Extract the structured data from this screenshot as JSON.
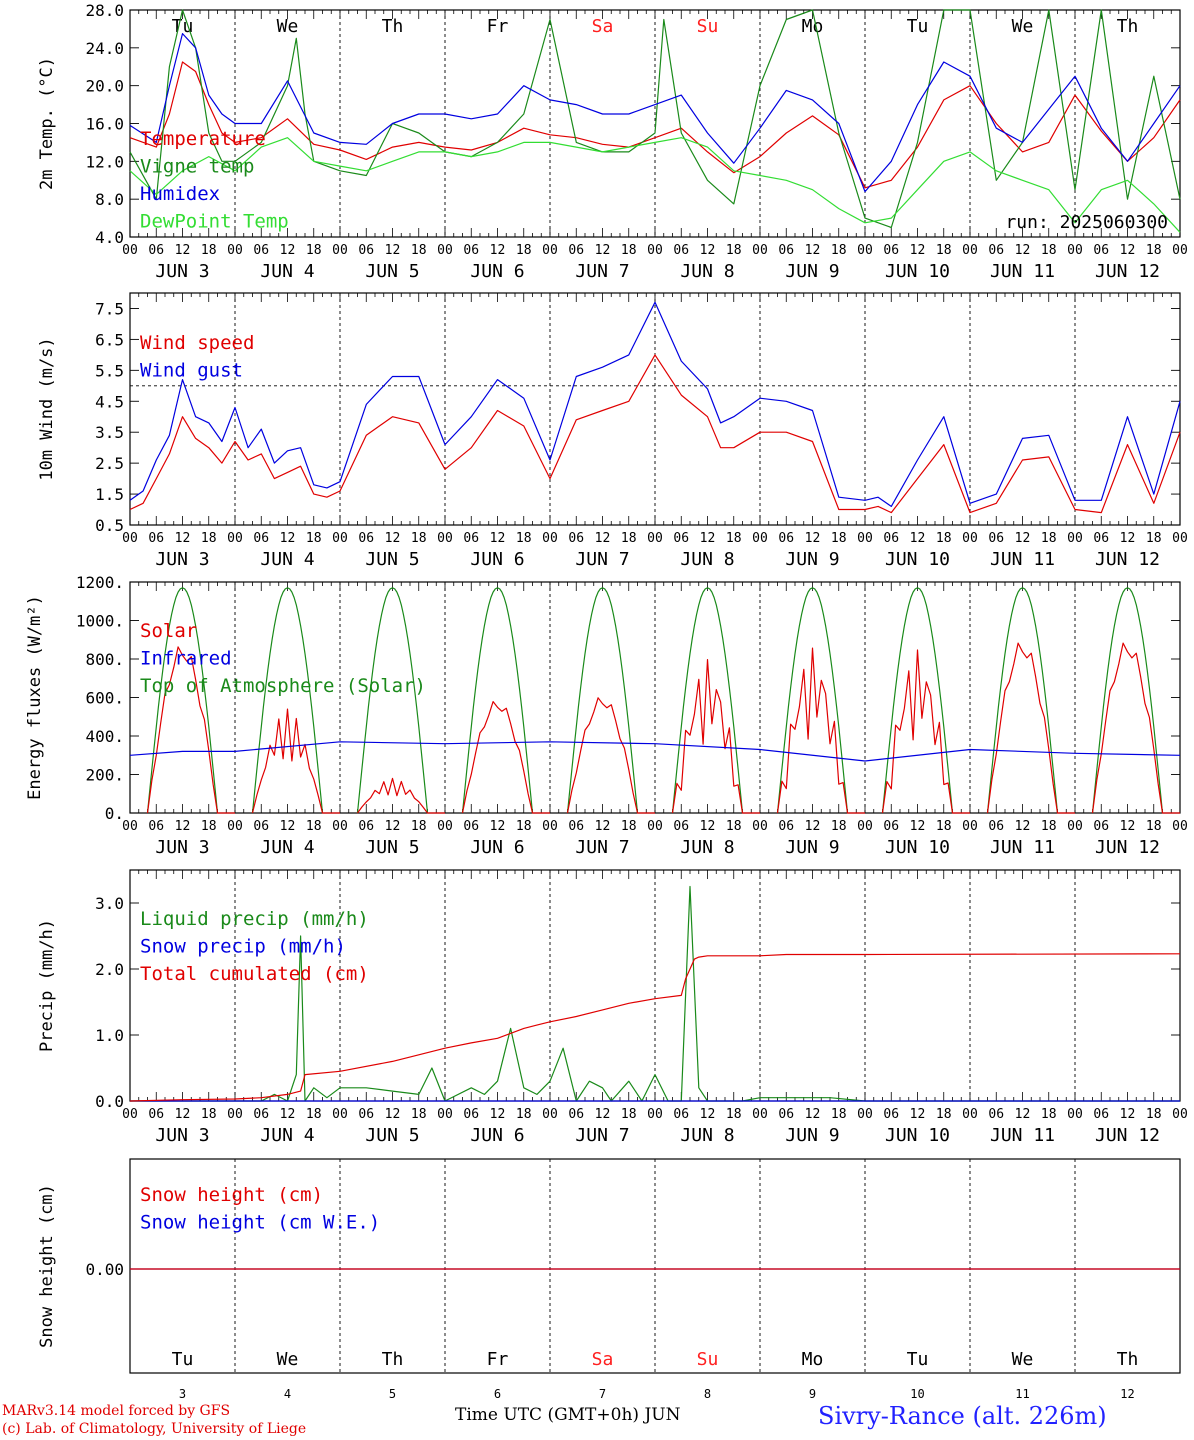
{
  "colors": {
    "red": "#e00000",
    "green": "#1a8a1a",
    "blue": "#0000e0",
    "lightgreen": "#33dd33",
    "weekend": "#ff2020",
    "black": "#000000"
  },
  "day_names": [
    "Tu",
    "We",
    "Th",
    "Fr",
    "Sa",
    "Su",
    "Mo",
    "Tu",
    "We",
    "Th"
  ],
  "weekend_flags": [
    false,
    false,
    false,
    false,
    true,
    true,
    false,
    false,
    false,
    false
  ],
  "day_numbers": [
    "3",
    "4",
    "5",
    "6",
    "7",
    "8",
    "9",
    "10",
    "11",
    "12"
  ],
  "date_labels": [
    "JUN  3",
    "JUN  4",
    "JUN  5",
    "JUN  6",
    "JUN  7",
    "JUN  8",
    "JUN  9",
    "JUN 10",
    "JUN 11",
    "JUN 12"
  ],
  "hour_ticks": [
    "00",
    "06",
    "12",
    "18"
  ],
  "hour_end": "00",
  "run_label": "run: 2025060300",
  "footer": {
    "line1": "MARv3.14 model forced by GFS",
    "line2": "(c) Lab. of Climatology, University of Liege",
    "xlabel": "Time UTC (GMT+0h) JUN",
    "station": "Sivry-Rance (alt. 226m)"
  },
  "chart_data": [
    {
      "type": "line",
      "ylabel": "2m Temp. (°C)",
      "ylim": [
        4,
        28
      ],
      "yticks": [
        "4.0",
        "8.0",
        "12.0",
        "16.0",
        "20.0",
        "24.0",
        "28.0"
      ],
      "x_unit": "hours since 2025-06-03 00 UTC",
      "series": [
        {
          "name": "Temperature",
          "color": "red",
          "x": [
            0,
            6,
            9,
            12,
            15,
            18,
            21,
            24,
            30,
            36,
            42,
            48,
            54,
            60,
            66,
            72,
            78,
            84,
            90,
            96,
            102,
            108,
            114,
            120,
            126,
            132,
            138,
            144,
            150,
            156,
            162,
            168,
            174,
            180,
            186,
            192,
            198,
            204,
            210,
            216,
            222,
            228,
            234,
            240
          ],
          "y": [
            14.5,
            13.5,
            17,
            22.5,
            21.5,
            18,
            15,
            14,
            14.5,
            16.5,
            13.8,
            13.2,
            12.2,
            13.5,
            14,
            13.5,
            13.2,
            14,
            15.5,
            14.8,
            14.5,
            13.8,
            13.5,
            14.5,
            15.5,
            13,
            10.8,
            12.5,
            15,
            16.8,
            14.8,
            9.2,
            10,
            13.5,
            18.5,
            20,
            16,
            13,
            14,
            19,
            15.2,
            12,
            14.5,
            18.5
          ]
        },
        {
          "name": "Vigne temp",
          "color": "green",
          "x": [
            0,
            6,
            9,
            12,
            15,
            18,
            21,
            24,
            30,
            36,
            38,
            40,
            42,
            48,
            54,
            60,
            66,
            72,
            78,
            84,
            90,
            96,
            102,
            108,
            114,
            120,
            122,
            126,
            132,
            138,
            144,
            150,
            156,
            162,
            168,
            174,
            180,
            186,
            192,
            198,
            204,
            210,
            216,
            222,
            228,
            234,
            240
          ],
          "y": [
            13,
            8,
            22,
            28,
            24,
            15,
            12,
            12,
            14,
            20,
            25,
            17,
            12,
            11,
            10.5,
            16,
            15,
            13,
            12.5,
            14,
            17,
            27,
            14,
            13,
            13,
            15,
            27,
            15,
            10,
            7.5,
            20,
            27,
            28,
            15,
            6,
            5,
            14,
            28,
            28,
            10,
            14,
            28,
            9,
            28,
            8,
            21,
            8
          ]
        },
        {
          "name": "Humidex",
          "color": "blue",
          "x": [
            0,
            6,
            9,
            12,
            15,
            18,
            21,
            24,
            30,
            36,
            42,
            48,
            54,
            60,
            66,
            72,
            78,
            84,
            90,
            96,
            102,
            108,
            114,
            120,
            126,
            132,
            138,
            144,
            150,
            156,
            162,
            168,
            174,
            180,
            186,
            192,
            198,
            204,
            210,
            216,
            222,
            228,
            234,
            240
          ],
          "y": [
            15.8,
            14,
            20,
            25.5,
            24,
            19,
            17,
            16,
            16,
            20.5,
            15,
            14,
            13.8,
            16,
            17,
            17,
            16.5,
            17,
            20,
            18.5,
            18,
            17,
            17,
            18,
            19,
            15,
            11.8,
            15.5,
            19.5,
            18.5,
            16,
            8.8,
            12,
            18,
            22.5,
            21,
            15.5,
            14,
            17.5,
            21,
            15.5,
            12,
            16,
            20
          ]
        },
        {
          "name": "DewPoint Temp",
          "color": "lightgreen",
          "x": [
            0,
            6,
            12,
            18,
            24,
            30,
            36,
            42,
            48,
            54,
            60,
            66,
            72,
            78,
            84,
            90,
            96,
            102,
            108,
            114,
            120,
            126,
            132,
            138,
            144,
            150,
            156,
            162,
            168,
            174,
            180,
            186,
            192,
            198,
            204,
            210,
            216,
            222,
            228,
            234,
            240
          ],
          "y": [
            11,
            8.5,
            11,
            12.5,
            11,
            13.5,
            14.5,
            12,
            11.5,
            11,
            12,
            13,
            13,
            12.5,
            13,
            14,
            14,
            13.5,
            13,
            13.5,
            14,
            14.5,
            13.5,
            11,
            10.5,
            10,
            9,
            7,
            5.5,
            6,
            9,
            12,
            13,
            11,
            10,
            9,
            5.5,
            9,
            10,
            7.5,
            4.5
          ]
        }
      ]
    },
    {
      "type": "line",
      "ylabel": "10m Wind (m/s)",
      "ylim": [
        0.5,
        8
      ],
      "yticks": [
        "0.5",
        "1.5",
        "2.5",
        "3.5",
        "4.5",
        "5.5",
        "6.5",
        "7.5"
      ],
      "reference_line": 5,
      "x_unit": "hours since 2025-06-03 00 UTC",
      "series": [
        {
          "name": "Wind speed",
          "color": "red",
          "x": [
            0,
            3,
            6,
            9,
            12,
            15,
            18,
            21,
            24,
            27,
            30,
            33,
            36,
            39,
            42,
            45,
            48,
            54,
            60,
            66,
            72,
            78,
            84,
            90,
            96,
            102,
            108,
            114,
            120,
            126,
            132,
            135,
            138,
            144,
            150,
            156,
            162,
            168,
            171,
            174,
            180,
            186,
            192,
            198,
            204,
            210,
            216,
            222,
            228,
            234,
            240
          ],
          "y": [
            1,
            1.2,
            2,
            2.8,
            4,
            3.3,
            3,
            2.5,
            3.2,
            2.6,
            2.8,
            2,
            2.2,
            2.4,
            1.5,
            1.4,
            1.6,
            3.4,
            4,
            3.8,
            2.3,
            3,
            4.2,
            3.7,
            2,
            3.9,
            4.2,
            4.5,
            6,
            4.7,
            4,
            3,
            3,
            3.5,
            3.5,
            3.2,
            1,
            1,
            1.1,
            0.9,
            2,
            3.1,
            0.9,
            1.2,
            2.6,
            2.7,
            1,
            0.9,
            3.1,
            1.2,
            3.5
          ]
        },
        {
          "name": "Wind gust",
          "color": "blue",
          "x": [
            0,
            3,
            6,
            9,
            12,
            15,
            18,
            21,
            24,
            27,
            30,
            33,
            36,
            39,
            42,
            45,
            48,
            54,
            60,
            66,
            72,
            78,
            84,
            90,
            96,
            102,
            108,
            114,
            120,
            126,
            132,
            135,
            138,
            144,
            150,
            156,
            162,
            168,
            171,
            174,
            180,
            186,
            192,
            198,
            204,
            210,
            216,
            222,
            228,
            234,
            240
          ],
          "y": [
            1.3,
            1.6,
            2.6,
            3.4,
            5.2,
            4,
            3.8,
            3.2,
            4.3,
            3,
            3.6,
            2.5,
            2.9,
            3,
            1.8,
            1.7,
            1.9,
            4.4,
            5.3,
            5.3,
            3.1,
            4,
            5.2,
            4.6,
            2.6,
            5.3,
            5.6,
            6,
            7.7,
            5.8,
            4.9,
            3.8,
            4,
            4.6,
            4.5,
            4.2,
            1.4,
            1.3,
            1.4,
            1.1,
            2.6,
            4,
            1.2,
            1.5,
            3.3,
            3.4,
            1.3,
            1.3,
            4,
            1.5,
            4.5
          ]
        }
      ]
    },
    {
      "type": "line",
      "ylabel": "Energy fluxes (W/m²)",
      "ylim": [
        0,
        1200
      ],
      "yticks": [
        "0.",
        "200.",
        "400.",
        "600.",
        "800.",
        "1000.",
        "1200."
      ],
      "x_unit": "hours since 2025-06-03 00 UTC",
      "series": [
        {
          "name": "Solar",
          "color": "red",
          "peaks": [
            880,
            540,
            180,
            590,
            610,
            800,
            860,
            850,
            900,
            900
          ],
          "peak_hour": 13
        },
        {
          "name": "Infrared",
          "color": "blue",
          "x": [
            0,
            12,
            24,
            48,
            72,
            96,
            120,
            144,
            168,
            192,
            216,
            240
          ],
          "y": [
            300,
            320,
            320,
            370,
            360,
            370,
            360,
            330,
            270,
            330,
            310,
            300
          ]
        },
        {
          "name": "Top of Atmosphere (Solar)",
          "color": "green",
          "peak": 1170,
          "sunrise_hour": 4,
          "sunset_hour": 20
        }
      ]
    },
    {
      "type": "line",
      "ylabel": "Precip (mm/h)",
      "ylim": [
        0,
        3.5
      ],
      "yticks": [
        "0.0",
        "1.0",
        "2.0",
        "3.0"
      ],
      "x_unit": "hours since 2025-06-03 00 UTC",
      "series": [
        {
          "name": "Liquid precip (mm/h)",
          "color": "green",
          "x": [
            0,
            30,
            33,
            36,
            38,
            39,
            40,
            42,
            45,
            48,
            54,
            60,
            66,
            69,
            72,
            78,
            81,
            84,
            87,
            90,
            93,
            96,
            99,
            102,
            105,
            108,
            110,
            114,
            117,
            120,
            123,
            126,
            128,
            130,
            132,
            140,
            144,
            160,
            168,
            240
          ],
          "y": [
            0,
            0,
            0.1,
            0,
            0.4,
            2.5,
            0,
            0.2,
            0.05,
            0.2,
            0.2,
            0.15,
            0.1,
            0.5,
            0,
            0.2,
            0.1,
            0.3,
            1.1,
            0.2,
            0.1,
            0.3,
            0.8,
            0,
            0.3,
            0.2,
            0,
            0.3,
            0,
            0.4,
            0,
            0,
            3.25,
            0.2,
            0,
            0,
            0.05,
            0.05,
            0,
            0
          ]
        },
        {
          "name": "Snow precip (mm/h)",
          "color": "blue",
          "x": [
            0,
            240
          ],
          "y": [
            0,
            0
          ]
        },
        {
          "name": "Total cumulated (cm)",
          "color": "red",
          "x": [
            0,
            12,
            24,
            30,
            36,
            39,
            40,
            48,
            60,
            66,
            72,
            78,
            84,
            90,
            93,
            96,
            102,
            108,
            114,
            120,
            126,
            127,
            129,
            130,
            132,
            144,
            150,
            168,
            240
          ],
          "y": [
            0,
            0.02,
            0.03,
            0.05,
            0.1,
            0.15,
            0.4,
            0.45,
            0.6,
            0.7,
            0.8,
            0.88,
            0.95,
            1.1,
            1.15,
            1.2,
            1.28,
            1.38,
            1.48,
            1.55,
            1.6,
            1.85,
            2.15,
            2.18,
            2.2,
            2.2,
            2.22,
            2.22,
            2.23
          ]
        }
      ]
    },
    {
      "type": "line",
      "ylabel": "Snow height (cm)",
      "yticks": [
        "0.00"
      ],
      "x_unit": "hours since 2025-06-03 00 UTC",
      "series": [
        {
          "name": "Snow height (cm)",
          "color": "red",
          "x": [
            0,
            240
          ],
          "y": [
            0,
            0
          ]
        },
        {
          "name": "Snow height (cm W.E.)",
          "color": "blue",
          "x": [
            0,
            240
          ],
          "y": [
            0,
            0
          ]
        }
      ]
    }
  ]
}
